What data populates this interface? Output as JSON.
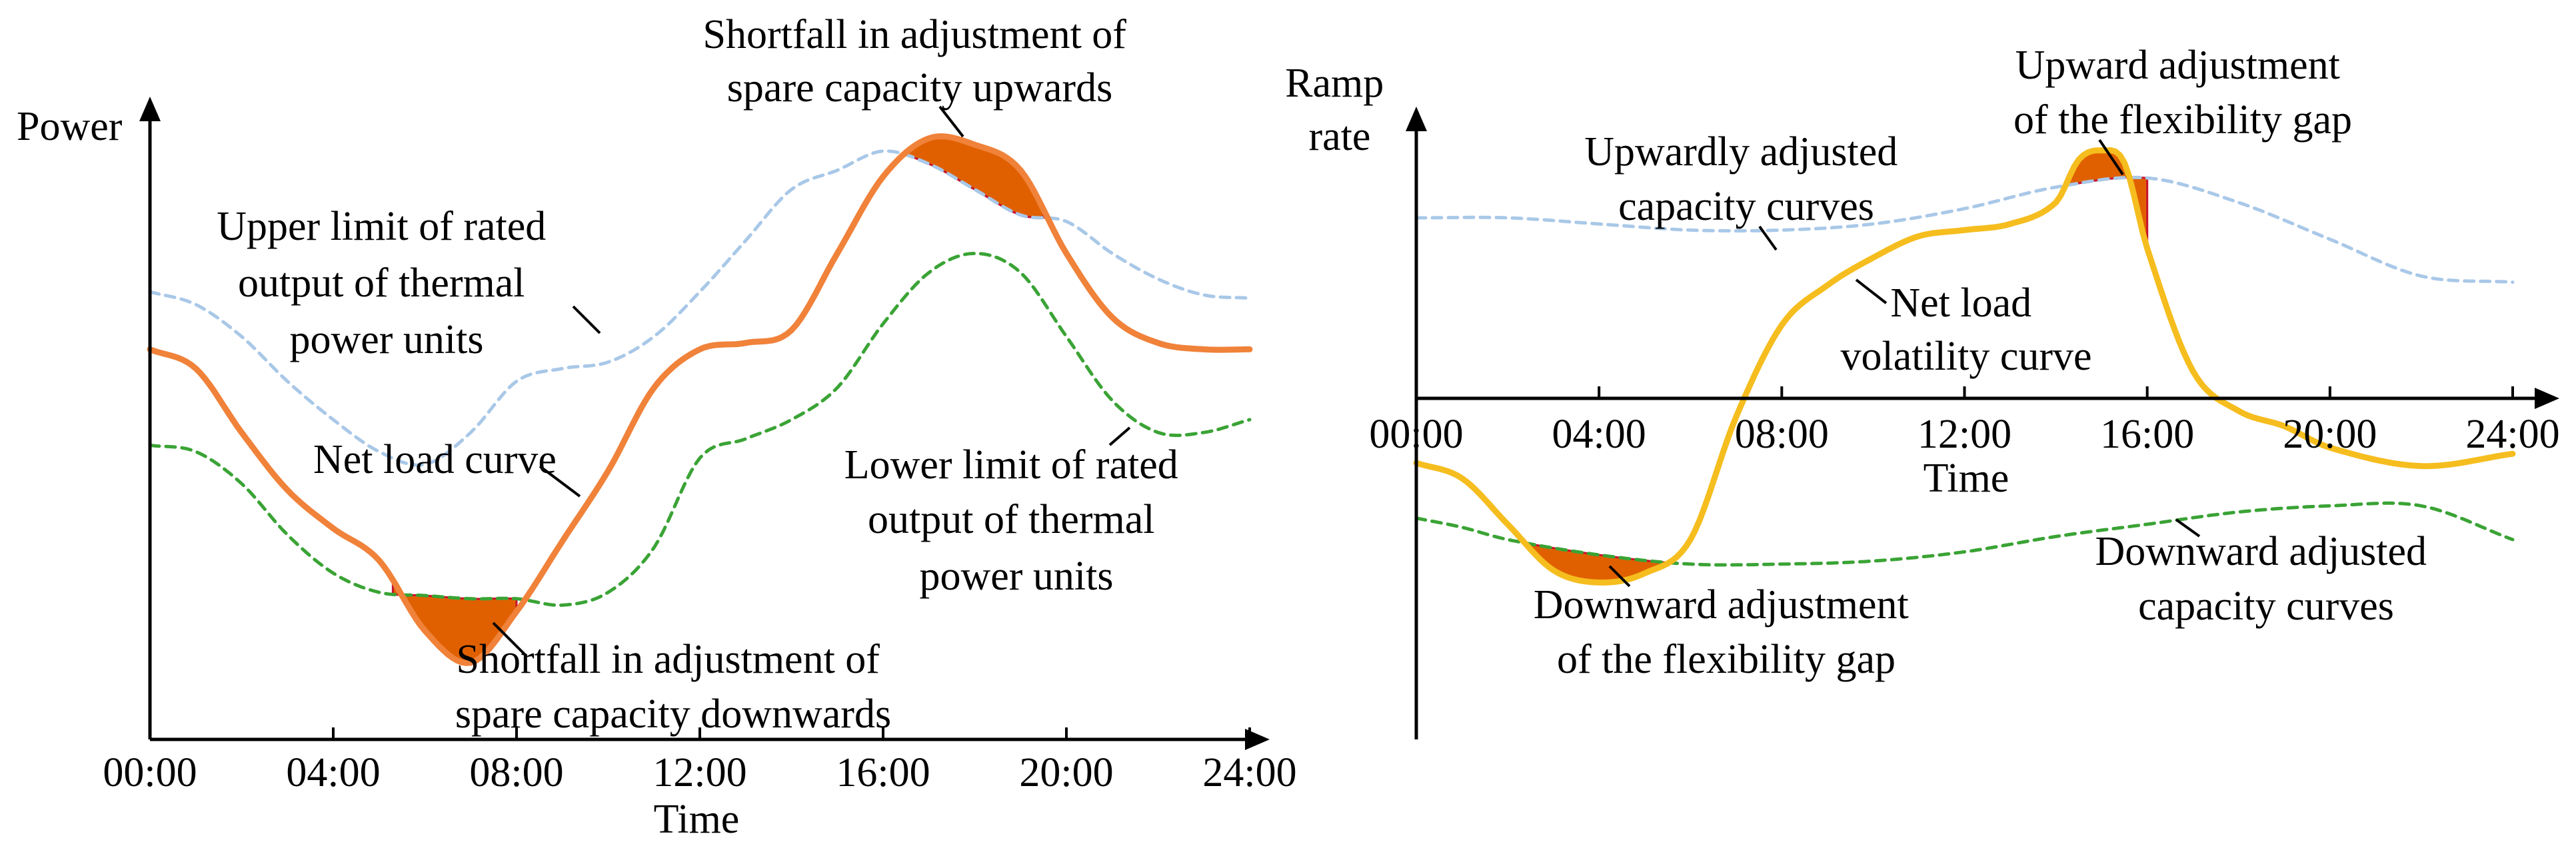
{
  "colors": {
    "upper_limit": "#a9c8e8",
    "lower_limit": "#3aa335",
    "net_load": "#f0823a",
    "ramp_volatility": "#f5bd1e",
    "gap_fill": "#e06000",
    "gap_edge": "#c8102e"
  },
  "chart_data": [
    {
      "type": "line",
      "id": "left",
      "xlabel": "Time",
      "ylabel": "Power",
      "x_range": [
        0,
        24
      ],
      "y_range": [
        0,
        10
      ],
      "ticks": [
        {
          "x": 0,
          "label": "00:00"
        },
        {
          "x": 4,
          "label": "04:00"
        },
        {
          "x": 8,
          "label": "08:00"
        },
        {
          "x": 12,
          "label": "12:00"
        },
        {
          "x": 16,
          "label": "16:00"
        },
        {
          "x": 20,
          "label": "20:00"
        },
        {
          "x": 24,
          "label": "24:00"
        }
      ],
      "series": [
        {
          "name": "Upper limit of rated output of thermal power units",
          "style": "dashed",
          "color_key": "upper_limit",
          "points": [
            [
              0,
              7
            ],
            [
              1,
              6.8
            ],
            [
              2,
              6.3
            ],
            [
              3,
              5.6
            ],
            [
              4,
              5
            ],
            [
              5,
              4.5
            ],
            [
              6,
              4.3
            ],
            [
              7,
              4.8
            ],
            [
              8,
              5.6
            ],
            [
              9,
              5.8
            ],
            [
              10,
              5.9
            ],
            [
              11,
              6.3
            ],
            [
              12,
              7
            ],
            [
              13,
              7.8
            ],
            [
              14,
              8.6
            ],
            [
              15,
              8.9
            ],
            [
              16,
              9.2
            ],
            [
              17,
              9
            ],
            [
              18,
              8.6
            ],
            [
              19,
              8.2
            ],
            [
              20,
              8.1
            ],
            [
              21,
              7.6
            ],
            [
              22,
              7.2
            ],
            [
              23,
              6.95
            ],
            [
              24,
              6.9
            ]
          ]
        },
        {
          "name": "Lower limit of rated output of thermal power units",
          "style": "dashed",
          "color_key": "lower_limit",
          "points": [
            [
              0,
              4.6
            ],
            [
              1,
              4.5
            ],
            [
              2,
              4
            ],
            [
              3,
              3.2
            ],
            [
              4,
              2.6
            ],
            [
              5,
              2.3
            ],
            [
              6,
              2.25
            ],
            [
              7,
              2.2
            ],
            [
              8,
              2.2
            ],
            [
              9,
              2.1
            ],
            [
              10,
              2.3
            ],
            [
              11,
              3
            ],
            [
              12,
              4.4
            ],
            [
              13,
              4.7
            ],
            [
              14,
              5
            ],
            [
              15,
              5.5
            ],
            [
              16,
              6.5
            ],
            [
              17,
              7.3
            ],
            [
              18,
              7.6
            ],
            [
              19,
              7.3
            ],
            [
              20,
              6.3
            ],
            [
              21,
              5.3
            ],
            [
              22,
              4.8
            ],
            [
              23,
              4.8
            ],
            [
              24,
              5
            ]
          ]
        },
        {
          "name": "Net load curve",
          "style": "solid",
          "color_key": "net_load",
          "points": [
            [
              0,
              6.1
            ],
            [
              1,
              5.8
            ],
            [
              2,
              4.8
            ],
            [
              3,
              3.9
            ],
            [
              4,
              3.3
            ],
            [
              5,
              2.8
            ],
            [
              6,
              1.7
            ],
            [
              7,
              1.2
            ],
            [
              8,
              2
            ],
            [
              9,
              3.1
            ],
            [
              10,
              4.2
            ],
            [
              11,
              5.5
            ],
            [
              12,
              6.1
            ],
            [
              13,
              6.2
            ],
            [
              14,
              6.4
            ],
            [
              15,
              7.6
            ],
            [
              16,
              8.8
            ],
            [
              17,
              9.4
            ],
            [
              18,
              9.3
            ],
            [
              19,
              8.9
            ],
            [
              20,
              7.6
            ],
            [
              21,
              6.6
            ],
            [
              22,
              6.2
            ],
            [
              23,
              6.1
            ],
            [
              24,
              6.1
            ]
          ]
        }
      ],
      "shaded_regions": [
        {
          "name": "Shortfall in adjustment of spare capacity upwards",
          "x_range": [
            16.5,
            19.5
          ]
        },
        {
          "name": "Shortfall in adjustment of spare capacity downwards",
          "x_range": [
            5.3,
            8.0
          ]
        }
      ],
      "annotations": [
        {
          "id": "shortfall_up",
          "lines": [
            "Shortfall in adjustment of",
            "spare capacity upwards"
          ]
        },
        {
          "id": "upper_limit",
          "lines": [
            "Upper limit of rated",
            "output of thermal",
            "power units"
          ]
        },
        {
          "id": "net_load",
          "lines": [
            "Net load curve"
          ]
        },
        {
          "id": "lower_limit",
          "lines": [
            "Lower limit of rated",
            "output of thermal",
            "power units"
          ]
        },
        {
          "id": "shortfall_down",
          "lines": [
            "Shortfall in adjustment of",
            "spare capacity downwards"
          ]
        }
      ]
    },
    {
      "type": "line",
      "id": "right",
      "xlabel": "Time",
      "ylabel_lines": [
        "Ramp",
        "rate"
      ],
      "x_range": [
        0,
        24
      ],
      "y_range": [
        -10,
        10
      ],
      "ticks": [
        {
          "x": 0,
          "label": "00:00"
        },
        {
          "x": 4,
          "label": "04:00"
        },
        {
          "x": 8,
          "label": "08:00"
        },
        {
          "x": 12,
          "label": "12:00"
        },
        {
          "x": 16,
          "label": "16:00"
        },
        {
          "x": 20,
          "label": "20:00"
        },
        {
          "x": 24,
          "label": "24:00"
        }
      ],
      "series": [
        {
          "name": "Upwardly adjusted capacity curves",
          "style": "dashed",
          "color_key": "upper_limit",
          "points": [
            [
              0,
              5.5
            ],
            [
              2,
              5.5
            ],
            [
              4,
              5.3
            ],
            [
              6,
              5.1
            ],
            [
              8,
              5.1
            ],
            [
              10,
              5.3
            ],
            [
              12,
              5.8
            ],
            [
              14,
              6.5
            ],
            [
              16,
              6.8
            ],
            [
              18,
              6
            ],
            [
              20,
              4.8
            ],
            [
              22,
              3.6
            ],
            [
              24,
              3.4
            ]
          ]
        },
        {
          "name": "Downward adjusted capacity curves",
          "style": "dashed",
          "color_key": "lower_limit",
          "points": [
            [
              0,
              -4.3
            ],
            [
              1,
              -4.6
            ],
            [
              2,
              -5
            ],
            [
              4,
              -5.5
            ],
            [
              6,
              -5.8
            ],
            [
              8,
              -5.8
            ],
            [
              10,
              -5.7
            ],
            [
              12,
              -5.4
            ],
            [
              14,
              -4.9
            ],
            [
              16,
              -4.5
            ],
            [
              18,
              -4.1
            ],
            [
              20,
              -3.9
            ],
            [
              22,
              -3.9
            ],
            [
              24,
              -5
            ]
          ]
        },
        {
          "name": "Net load volatility curve",
          "style": "solid",
          "color_key": "ramp_volatility",
          "points": [
            [
              0,
              -2.5
            ],
            [
              1,
              -3
            ],
            [
              2,
              -4.5
            ],
            [
              3,
              -6
            ],
            [
              4,
              -6.4
            ],
            [
              5,
              -6.1
            ],
            [
              6,
              -5
            ],
            [
              7,
              -1
            ],
            [
              8,
              2
            ],
            [
              9,
              3.3
            ],
            [
              10,
              4.2
            ],
            [
              11,
              4.9
            ],
            [
              12,
              5.1
            ],
            [
              13,
              5.3
            ],
            [
              14,
              6
            ],
            [
              14.5,
              7.4
            ],
            [
              15,
              7.7
            ],
            [
              15.5,
              7.3
            ],
            [
              16,
              4.5
            ],
            [
              17,
              0.5
            ],
            [
              18,
              -0.8
            ],
            [
              19,
              -1.3
            ],
            [
              20,
              -2
            ],
            [
              22,
              -2.6
            ],
            [
              24,
              -2.2
            ]
          ]
        }
      ],
      "shaded_regions": [
        {
          "name": "Upward adjustment of the flexibility gap",
          "x_range": [
            14.2,
            16.0
          ]
        },
        {
          "name": "Downward adjustment of the flexibility gap",
          "x_range": [
            2.4,
            5.6
          ]
        }
      ],
      "annotations": [
        {
          "id": "upward_gap",
          "lines": [
            "Upward adjustment",
            "of the flexibility gap"
          ]
        },
        {
          "id": "upward_capacity",
          "lines": [
            "Upwardly adjusted",
            "capacity curves"
          ]
        },
        {
          "id": "volatility",
          "lines": [
            "Net load",
            "volatility curve"
          ]
        },
        {
          "id": "downward_gap",
          "lines": [
            "Downward adjustment",
            "of the flexibility gap"
          ]
        },
        {
          "id": "downward_capacity",
          "lines": [
            "Downward adjusted",
            "capacity curves"
          ]
        }
      ]
    }
  ]
}
